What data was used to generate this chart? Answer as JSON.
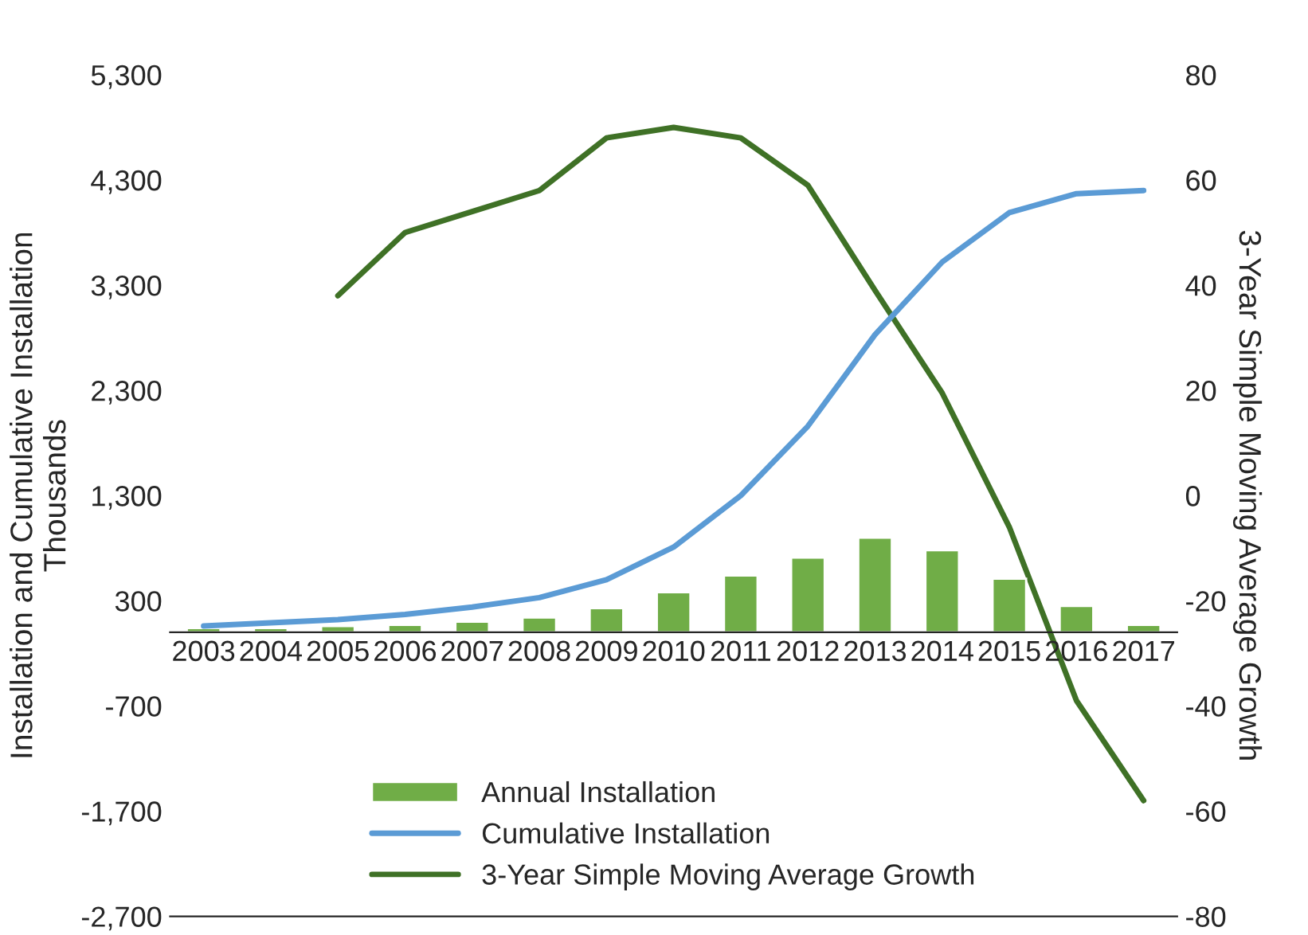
{
  "chart_data": {
    "type": "bar",
    "ylabel": "Installation and Cumulative Installation\nThousands",
    "y2label": "3-Year Simple Moving Average Growth",
    "categories": [
      "2003",
      "2004",
      "2005",
      "2006",
      "2007",
      "2008",
      "2009",
      "2010",
      "2011",
      "2012",
      "2013",
      "2014",
      "2015",
      "2016",
      "2017"
    ],
    "series": [
      {
        "name": "Annual Installation",
        "color": "#70ad47",
        "values": [
          40,
          40,
          60,
          70,
          100,
          140,
          230,
          380,
          540,
          710,
          900,
          780,
          510,
          250,
          70
        ]
      },
      {
        "name": "Cumulative Installation",
        "type": "line",
        "color": "#5b9bd5",
        "values": [
          60,
          90,
          120,
          170,
          240,
          330,
          500,
          810,
          1300,
          1960,
          2830,
          3520,
          3990,
          4170,
          4200
        ]
      },
      {
        "name": "3-Year Simple Moving Average Growth",
        "type": "line",
        "axis": "y2",
        "color": "#3f7126",
        "values": [
          null,
          null,
          38,
          50,
          54,
          58,
          68,
          70,
          68,
          59,
          39,
          19.5,
          -6,
          -39,
          -58
        ]
      }
    ],
    "ylim": [
      -2700,
      5300
    ],
    "yticks": [
      {
        "value": -2700,
        "label": "-2,700"
      },
      {
        "value": -1700,
        "label": "-1,700"
      },
      {
        "value": -700,
        "label": "-700"
      },
      {
        "value": 300,
        "label": "300"
      },
      {
        "value": 1300,
        "label": "1,300"
      },
      {
        "value": 2300,
        "label": "2,300"
      },
      {
        "value": 3300,
        "label": "3,300"
      },
      {
        "value": 4300,
        "label": "4,300"
      },
      {
        "value": 5300,
        "label": "5,300"
      }
    ],
    "y2lim": [
      -80,
      80
    ],
    "y2ticks": [
      -80,
      -60,
      -40,
      -20,
      0,
      20,
      40,
      60,
      80
    ],
    "legend": "bottom",
    "grid": false,
    "marker": "none",
    "line_style": "solid"
  }
}
